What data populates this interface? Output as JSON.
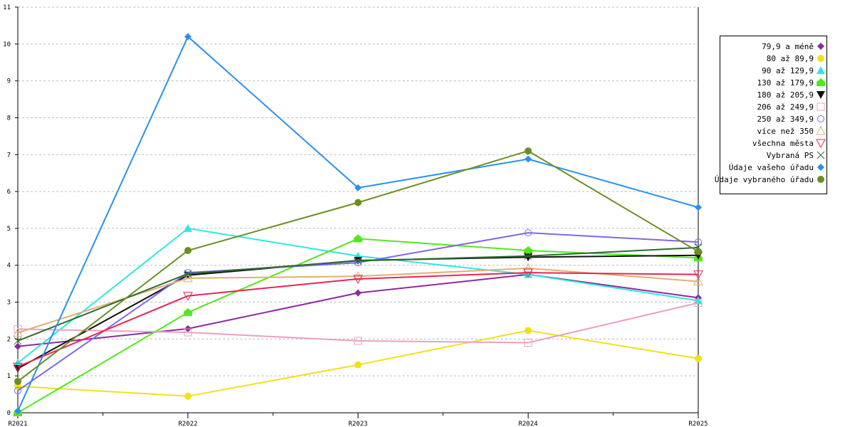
{
  "chart_data": {
    "type": "line",
    "title": "",
    "xlabel": "",
    "ylabel": "",
    "x": [
      "R2021",
      "R2022",
      "R2023",
      "R2024",
      "R2025"
    ],
    "ylim": [
      0,
      11
    ],
    "yticks": [
      "0",
      "1",
      "2",
      "3",
      "4",
      "5",
      "6",
      "7",
      "8",
      "9",
      "10",
      "11"
    ],
    "grid": true,
    "legend_position": "right",
    "series": [
      {
        "name": "79,9 a méně",
        "color": "#8e2a9e",
        "marker": "diamond",
        "values": [
          1.8,
          2.28,
          3.25,
          3.75,
          3.12
        ]
      },
      {
        "name": "80 až 89,9",
        "color": "#f0e21a",
        "marker": "circle",
        "values": [
          0.72,
          0.45,
          1.3,
          2.23,
          1.47
        ]
      },
      {
        "name": "90 až 129,9",
        "color": "#2de8e0",
        "marker": "triangle-up",
        "values": [
          1.35,
          5.0,
          4.25,
          3.75,
          3.04
        ]
      },
      {
        "name": "130 až 179,9",
        "color": "#52e81e",
        "marker": "pentagon",
        "values": [
          0,
          2.72,
          4.72,
          4.4,
          4.2
        ]
      },
      {
        "name": "180 až 205,9",
        "color": "#111111",
        "marker": "triangle-down",
        "values": [
          1.2,
          3.73,
          4.13,
          4.22,
          4.27
        ]
      },
      {
        "name": "206 až 249,9",
        "color": "#eaa0c0",
        "marker": "square-open",
        "values": [
          2.27,
          2.18,
          1.95,
          1.9,
          2.98
        ]
      },
      {
        "name": "250 až 349,9",
        "color": "#7b68ee",
        "marker": "circle-open",
        "values": [
          0.6,
          3.8,
          4.07,
          4.88,
          4.63
        ]
      },
      {
        "name": "více než 350",
        "color": "#deb070",
        "marker": "triangle-up-open",
        "values": [
          2.17,
          3.65,
          3.7,
          3.92,
          3.56
        ]
      },
      {
        "name": "všechna města",
        "color": "#ee2255",
        "marker": "triangle-down-open",
        "values": [
          1.25,
          3.17,
          3.63,
          3.8,
          3.75
        ]
      },
      {
        "name": "Vybraná PS",
        "color": "#2e6b2e",
        "marker": "x",
        "values": [
          1.95,
          3.77,
          4.12,
          4.25,
          4.48
        ]
      },
      {
        "name": "Údaje vašeho úřadu",
        "color": "#2a90f0",
        "marker": "diamond",
        "values": [
          0.05,
          10.2,
          6.1,
          6.88,
          5.57
        ]
      },
      {
        "name": "Údaje vybraného úřadu",
        "color": "#6b8e23",
        "marker": "circle",
        "values": [
          0.85,
          4.4,
          5.7,
          7.1,
          4.37
        ]
      }
    ]
  }
}
